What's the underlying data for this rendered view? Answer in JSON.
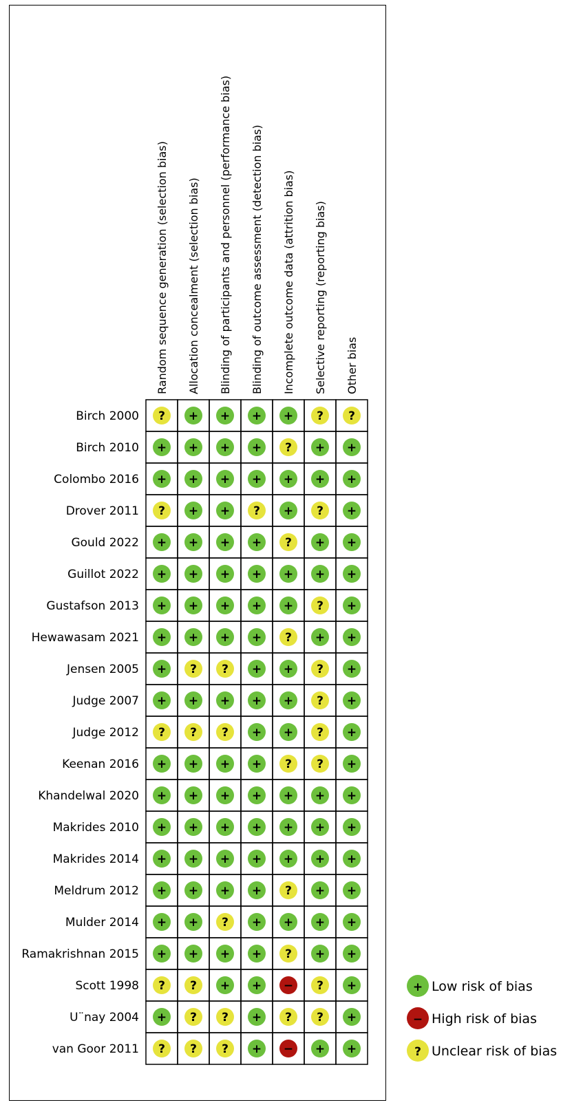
{
  "chart_data": {
    "type": "table",
    "domains": [
      "Random sequence generation (selection bias)",
      "Allocation concealment (selection bias)",
      "Blinding of participants and personnel (performance bias)",
      "Blinding of outcome assessment (detection bias)",
      "Incomplete outcome data (attrition bias)",
      "Selective reporting (reporting bias)",
      "Other bias"
    ],
    "studies": [
      {
        "name": "Birch 2000",
        "ratings": [
          "unclear",
          "low",
          "low",
          "low",
          "low",
          "unclear",
          "unclear"
        ]
      },
      {
        "name": "Birch 2010",
        "ratings": [
          "low",
          "low",
          "low",
          "low",
          "unclear",
          "low",
          "low"
        ]
      },
      {
        "name": "Colombo 2016",
        "ratings": [
          "low",
          "low",
          "low",
          "low",
          "low",
          "low",
          "low"
        ]
      },
      {
        "name": "Drover 2011",
        "ratings": [
          "unclear",
          "low",
          "low",
          "unclear",
          "low",
          "unclear",
          "low"
        ]
      },
      {
        "name": "Gould 2022",
        "ratings": [
          "low",
          "low",
          "low",
          "low",
          "unclear",
          "low",
          "low"
        ]
      },
      {
        "name": "Guillot 2022",
        "ratings": [
          "low",
          "low",
          "low",
          "low",
          "low",
          "low",
          "low"
        ]
      },
      {
        "name": "Gustafson 2013",
        "ratings": [
          "low",
          "low",
          "low",
          "low",
          "low",
          "unclear",
          "low"
        ]
      },
      {
        "name": "Hewawasam 2021",
        "ratings": [
          "low",
          "low",
          "low",
          "low",
          "unclear",
          "low",
          "low"
        ]
      },
      {
        "name": "Jensen 2005",
        "ratings": [
          "low",
          "unclear",
          "unclear",
          "low",
          "low",
          "unclear",
          "low"
        ]
      },
      {
        "name": "Judge 2007",
        "ratings": [
          "low",
          "low",
          "low",
          "low",
          "low",
          "unclear",
          "low"
        ]
      },
      {
        "name": "Judge 2012",
        "ratings": [
          "unclear",
          "unclear",
          "unclear",
          "low",
          "low",
          "unclear",
          "low"
        ]
      },
      {
        "name": "Keenan 2016",
        "ratings": [
          "low",
          "low",
          "low",
          "low",
          "unclear",
          "unclear",
          "low"
        ]
      },
      {
        "name": "Khandelwal 2020",
        "ratings": [
          "low",
          "low",
          "low",
          "low",
          "low",
          "low",
          "low"
        ]
      },
      {
        "name": "Makrides 2010",
        "ratings": [
          "low",
          "low",
          "low",
          "low",
          "low",
          "low",
          "low"
        ]
      },
      {
        "name": "Makrides 2014",
        "ratings": [
          "low",
          "low",
          "low",
          "low",
          "low",
          "low",
          "low"
        ]
      },
      {
        "name": "Meldrum 2012",
        "ratings": [
          "low",
          "low",
          "low",
          "low",
          "unclear",
          "low",
          "low"
        ]
      },
      {
        "name": "Mulder 2014",
        "ratings": [
          "low",
          "low",
          "unclear",
          "low",
          "low",
          "low",
          "low"
        ]
      },
      {
        "name": "Ramakrishnan 2015",
        "ratings": [
          "low",
          "low",
          "low",
          "low",
          "unclear",
          "low",
          "low"
        ]
      },
      {
        "name": "Scott 1998",
        "ratings": [
          "unclear",
          "unclear",
          "low",
          "low",
          "high",
          "unclear",
          "low"
        ]
      },
      {
        "name": "U¨nay 2004",
        "ratings": [
          "low",
          "unclear",
          "unclear",
          "low",
          "unclear",
          "unclear",
          "low"
        ]
      },
      {
        "name": "van Goor 2011",
        "ratings": [
          "unclear",
          "unclear",
          "unclear",
          "low",
          "high",
          "low",
          "low"
        ]
      }
    ],
    "legend": [
      {
        "key": "low",
        "label": "Low risk of bias",
        "symbol": "+",
        "color": "#6cbf3c"
      },
      {
        "key": "high",
        "label": "High risk of bias",
        "symbol": "−",
        "color": "#b0140f"
      },
      {
        "key": "unclear",
        "label": "Unclear risk of bias",
        "symbol": "?",
        "color": "#e6e33c"
      }
    ],
    "legend_placement": "bottom-right"
  }
}
